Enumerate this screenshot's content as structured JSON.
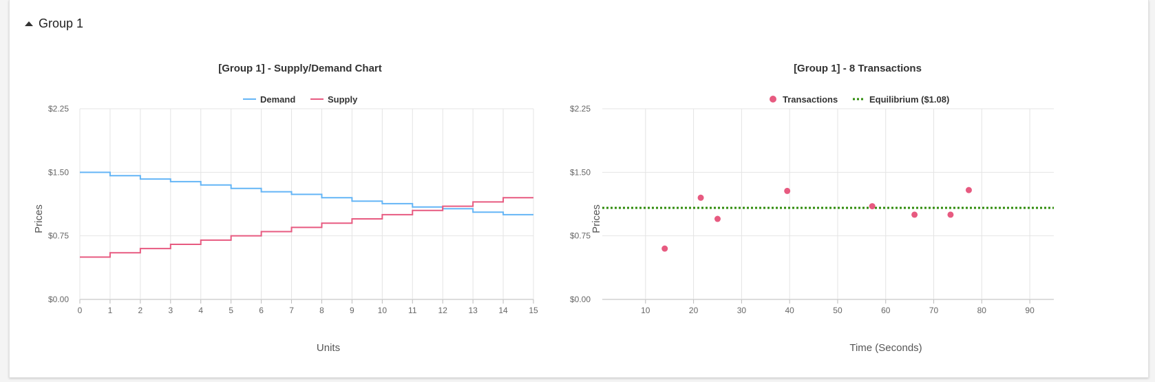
{
  "group": {
    "label": "Group 1"
  },
  "colors": {
    "demand": "#64b5f6",
    "supply": "#e75a80",
    "transactions": "#e75a80",
    "equilibrium": "#2e8b0a"
  },
  "chart_data": [
    {
      "type": "line",
      "step": true,
      "title": "[Group 1] - Supply/Demand Chart",
      "xlabel": "Units",
      "ylabel": "Prices",
      "xlim": [
        0,
        15
      ],
      "ylim": [
        0,
        2.25
      ],
      "xticks": [
        "0",
        "1",
        "2",
        "3",
        "4",
        "5",
        "6",
        "7",
        "8",
        "9",
        "10",
        "11",
        "12",
        "13",
        "14",
        "15"
      ],
      "yticks": [
        "$0.00",
        "$0.75",
        "$1.50",
        "$2.25"
      ],
      "legend": "top",
      "grid": true,
      "series": [
        {
          "name": "Demand",
          "x": [
            0,
            1,
            2,
            3,
            4,
            5,
            6,
            7,
            8,
            9,
            10,
            11,
            12,
            13,
            14,
            15
          ],
          "values": [
            1.5,
            1.46,
            1.42,
            1.39,
            1.35,
            1.31,
            1.27,
            1.24,
            1.2,
            1.16,
            1.13,
            1.09,
            1.07,
            1.03,
            1.0,
            1.0
          ]
        },
        {
          "name": "Supply",
          "x": [
            0,
            1,
            2,
            3,
            4,
            5,
            6,
            7,
            8,
            9,
            10,
            11,
            12,
            13,
            14,
            15
          ],
          "values": [
            0.5,
            0.55,
            0.6,
            0.65,
            0.7,
            0.75,
            0.8,
            0.85,
            0.9,
            0.95,
            1.0,
            1.05,
            1.1,
            1.15,
            1.2,
            1.2
          ]
        }
      ]
    },
    {
      "type": "scatter",
      "title": "[Group 1] - 8 Transactions",
      "xlabel": "Time (Seconds)",
      "ylabel": "Prices",
      "xlim": [
        1,
        95
      ],
      "ylim": [
        0,
        2.25
      ],
      "xticks": [
        "10",
        "20",
        "30",
        "40",
        "50",
        "60",
        "70",
        "80",
        "90"
      ],
      "yticks": [
        "$0.00",
        "$0.75",
        "$1.50",
        "$2.25"
      ],
      "legend": "top",
      "grid": true,
      "series": [
        {
          "name": "Transactions",
          "points": [
            [
              14,
              0.6
            ],
            [
              21.5,
              1.2
            ],
            [
              25,
              0.95
            ],
            [
              39.5,
              1.28
            ],
            [
              57.2,
              1.1
            ],
            [
              66,
              1.0
            ],
            [
              73.5,
              1.0
            ],
            [
              77.3,
              1.29
            ]
          ]
        },
        {
          "name": "Equilibrium ($1.08)",
          "type": "hline",
          "y": 1.08
        }
      ]
    }
  ]
}
